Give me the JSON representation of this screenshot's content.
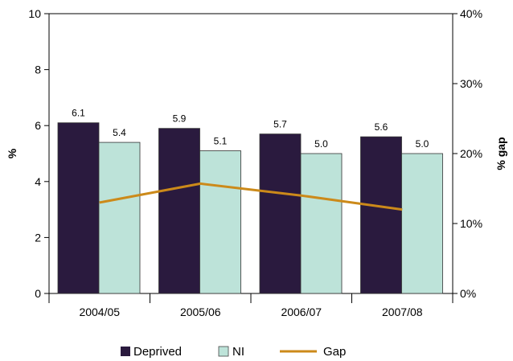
{
  "chart_data": {
    "type": "bar",
    "categories": [
      "2004/05",
      "2005/06",
      "2006/07",
      "2007/08"
    ],
    "series": [
      {
        "name": "Deprived",
        "values": [
          6.1,
          5.9,
          5.7,
          5.6
        ],
        "labels": [
          "6.1",
          "5.9",
          "5.7",
          "5.6"
        ],
        "color": "#2a1a3e"
      },
      {
        "name": "NI",
        "values": [
          5.4,
          5.1,
          5.0,
          5.0
        ],
        "labels": [
          "5.4",
          "5.1",
          "5.0",
          "5.0"
        ],
        "color": "#bde3d9"
      }
    ],
    "line_series": {
      "name": "Gap",
      "values": [
        13,
        15.7,
        14,
        12
      ],
      "color": "#cc8a1a",
      "axis": "right"
    },
    "ylabel": "%",
    "ylabel_right": "% gap",
    "ylim": [
      0,
      10
    ],
    "yticks": [
      "0",
      "2",
      "4",
      "6",
      "8",
      "10"
    ],
    "ylim_right": [
      0,
      40
    ],
    "yticks_right": [
      "0%",
      "10%",
      "20%",
      "30%",
      "40%"
    ],
    "grid": false,
    "legend_position": "bottom"
  }
}
